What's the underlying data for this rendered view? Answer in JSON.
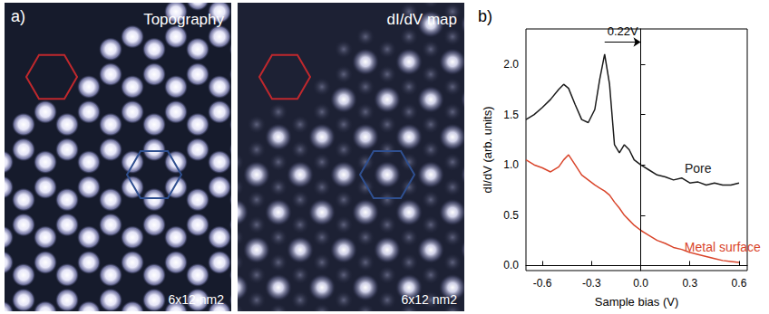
{
  "panel_a": {
    "label": "a)",
    "images": [
      {
        "title": "Topography",
        "scale_text": "6x12 nm2"
      },
      {
        "title": "dI/dV map",
        "scale_text": "6x12 nm2"
      }
    ]
  },
  "chart_data": {
    "panel_label": "b)",
    "type": "line",
    "x_label": "Sample bias (V)",
    "y_label": "dI/dV (arb. units)",
    "x": [
      -0.7,
      -0.65,
      -0.6,
      -0.55,
      -0.5,
      -0.47,
      -0.44,
      -0.4,
      -0.36,
      -0.32,
      -0.28,
      -0.25,
      -0.22,
      -0.19,
      -0.16,
      -0.13,
      -0.1,
      -0.07,
      -0.04,
      0,
      0.05,
      0.1,
      0.15,
      0.2,
      0.25,
      0.3,
      0.35,
      0.4,
      0.45,
      0.5,
      0.55,
      0.6
    ],
    "series": [
      {
        "name": "Pore",
        "color": "#1a1a1a",
        "values": [
          1.45,
          1.5,
          1.57,
          1.65,
          1.75,
          1.8,
          1.76,
          1.6,
          1.45,
          1.42,
          1.55,
          1.85,
          2.1,
          1.8,
          1.2,
          1.12,
          1.2,
          1.15,
          1.05,
          1.0,
          0.95,
          0.9,
          0.88,
          0.85,
          0.87,
          0.82,
          0.83,
          0.8,
          0.82,
          0.8,
          0.8,
          0.82
        ]
      },
      {
        "name": "Metal surface",
        "color": "#d9452b",
        "values": [
          1.05,
          1.0,
          0.97,
          0.93,
          0.98,
          1.05,
          1.1,
          1.0,
          0.9,
          0.85,
          0.8,
          0.77,
          0.74,
          0.7,
          0.63,
          0.57,
          0.5,
          0.45,
          0.4,
          0.35,
          0.3,
          0.25,
          0.22,
          0.18,
          0.16,
          0.13,
          0.11,
          0.09,
          0.07,
          0.05,
          0.04,
          0.03
        ]
      }
    ],
    "xlim": [
      -0.7,
      0.65
    ],
    "xticks": [
      -0.6,
      -0.3,
      {
        "value": 0,
        "label": "0.0"
      },
      0.3,
      0.6
    ],
    "ylim": [
      -0.05,
      2.35
    ],
    "yticks": [
      {
        "value": 0,
        "label": "0.0"
      },
      0.5,
      {
        "value": 1,
        "label": "1.0"
      },
      1.5,
      {
        "value": 2,
        "label": "2.0"
      }
    ],
    "annotations": [
      {
        "text": "0.22V",
        "x_from": -0.22,
        "x_to": 0,
        "y": 2.22
      }
    ],
    "vline": 0,
    "grid": false
  }
}
